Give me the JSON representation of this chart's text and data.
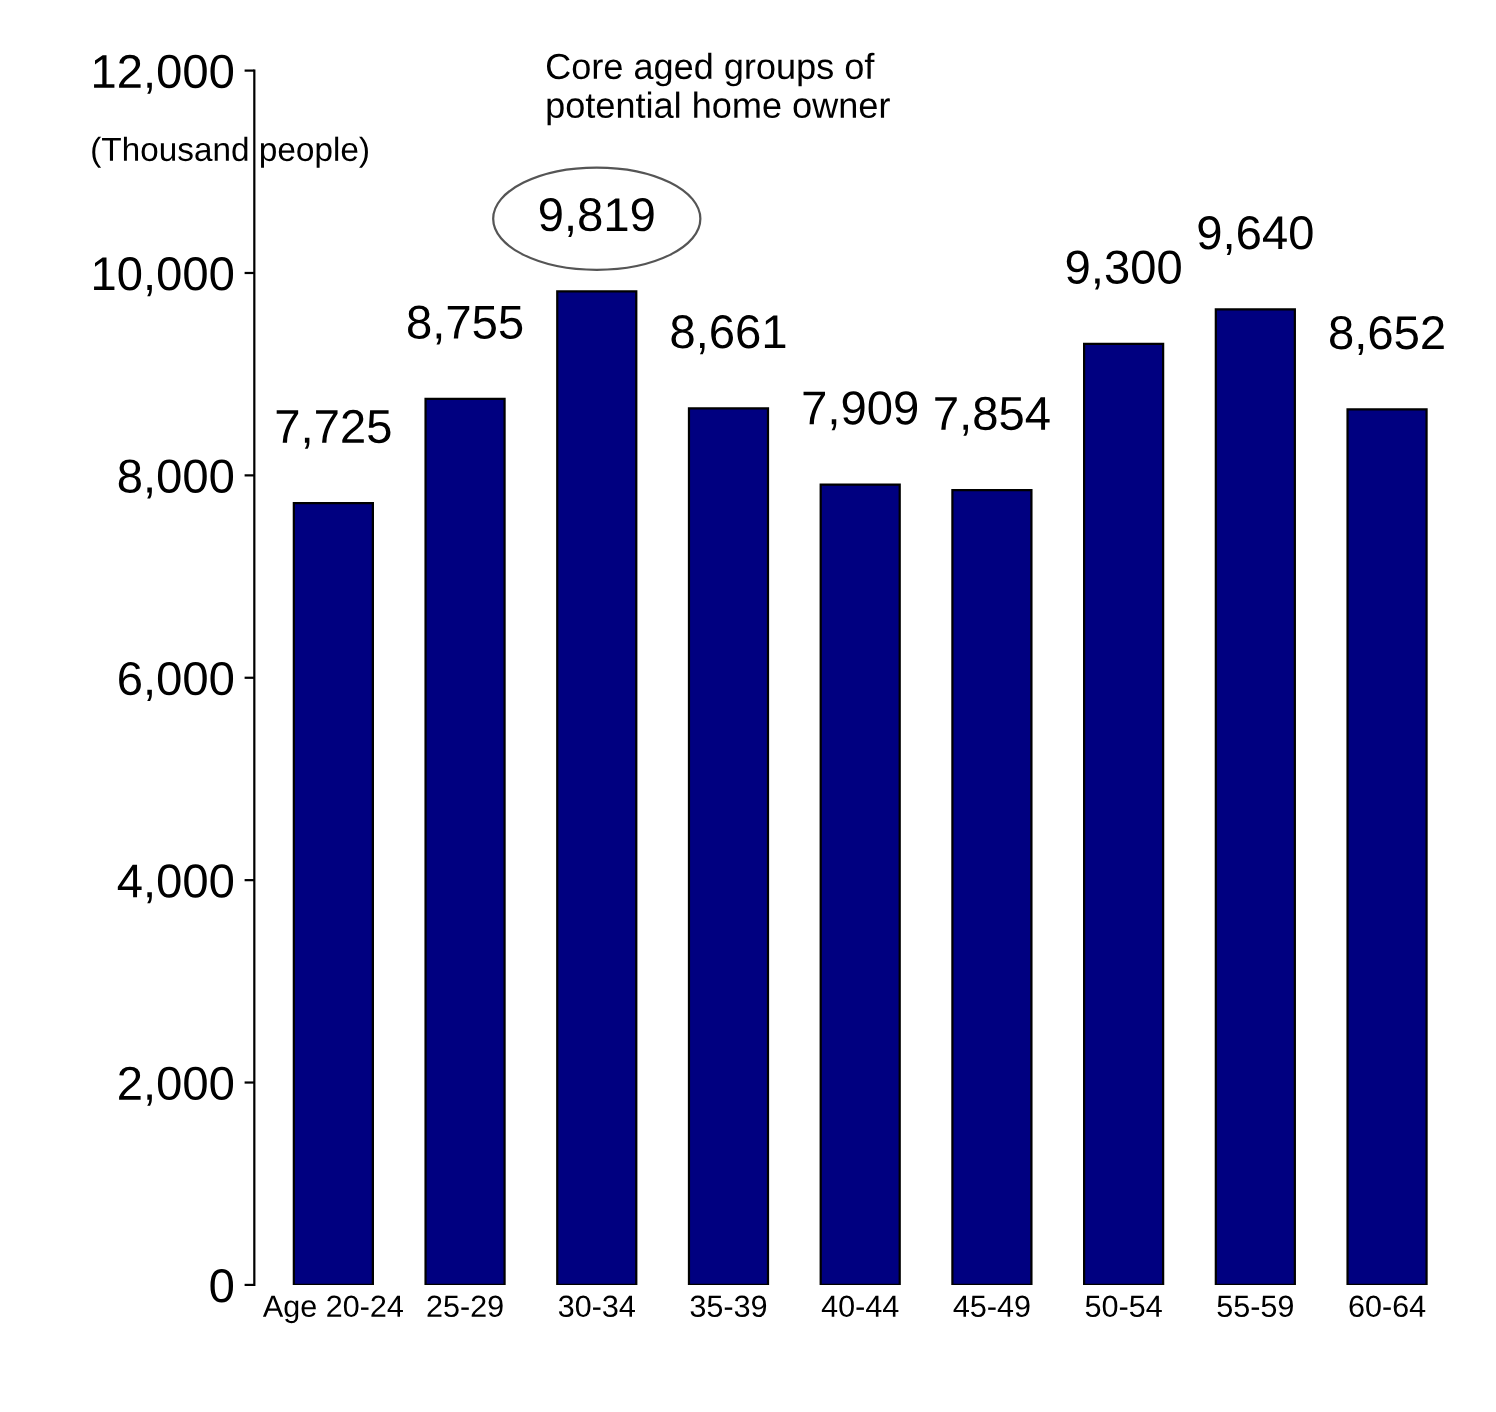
{
  "chart_data": {
    "type": "bar",
    "ylabel": "(Thousand people)",
    "categories": [
      "Age 20-24",
      "25-29",
      "30-34",
      "35-39",
      "40-44",
      "45-49",
      "50-54",
      "55-59",
      "60-64"
    ],
    "values": [
      7725,
      8755,
      9819,
      8661,
      7909,
      7854,
      9300,
      9640,
      8652
    ],
    "value_labels": [
      "7,725",
      "8,755",
      "9,819",
      "8,661",
      "7,909",
      "7,854",
      "9,300",
      "9,640",
      "8,652"
    ],
    "color": "#000080",
    "ylim": [
      0,
      12000
    ],
    "yticks": [
      {
        "value": 0,
        "label": "0"
      },
      {
        "value": 2000,
        "label": "2,000"
      },
      {
        "value": 4000,
        "label": "4,000"
      },
      {
        "value": 6000,
        "label": "6,000"
      },
      {
        "value": 8000,
        "label": "8,000"
      },
      {
        "value": 10000,
        "label": "10,000"
      },
      {
        "value": 12000,
        "label": "12,000"
      }
    ],
    "annotations": [
      "Core aged groups of\npotential home owner"
    ],
    "grid": false,
    "legend": false
  }
}
